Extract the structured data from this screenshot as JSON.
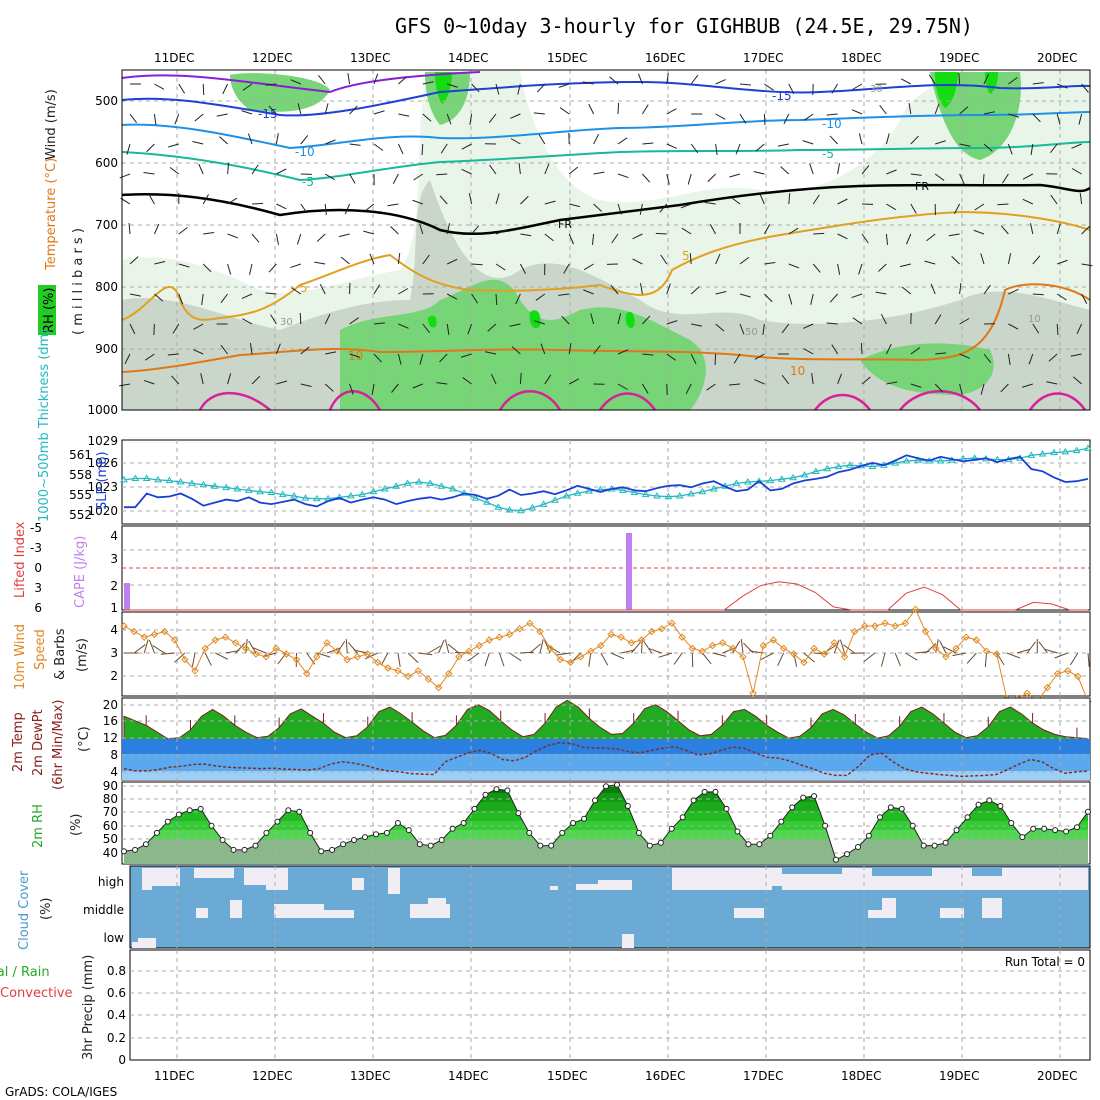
{
  "title": "GFS 0~10day 3-hourly for GIGHBUB (24.5E, 29.75N)",
  "credit": "GrADS: COLA/IGES",
  "days": [
    "11DEC",
    "12DEC",
    "13DEC",
    "14DEC",
    "15DEC",
    "16DEC",
    "17DEC",
    "18DEC",
    "19DEC",
    "20DEC"
  ],
  "colors": {
    "rh_light": "#eaf5ea",
    "rh_mid": "#c9d6c9",
    "rh_green": "#77d477",
    "rh_bright": "#11dd11",
    "temp_neg15": "#1f3fd8",
    "temp_neg10": "#1e90e6",
    "temp_neg5": "#18b89a",
    "temp_fr": "#000000",
    "temp_5": "#e0a020",
    "temp_10": "#e07818",
    "temp_15": "#d8209a",
    "slp": "#1a3fd6",
    "thickness": "#22b8c0",
    "cape": "#c080f0",
    "li": "#e04040",
    "wind": "#e08820",
    "temp_fill": "#22aa22",
    "rh2m": "#22cc22",
    "cloud": "#6aaad4"
  },
  "panels": {
    "upper": {
      "label_wind": "Wind (m/s)",
      "label_temp": "Temperature (°C)",
      "label_rh": "RH (%)",
      "label_mb": "( m i l l i b a r s )",
      "yticks": [
        "500",
        "600",
        "700",
        "800",
        "900",
        "1000"
      ],
      "contour_labels": [
        "-15",
        "-15",
        "-10",
        "-10",
        "-5",
        "-5",
        "FR",
        "FR",
        "5",
        "5",
        "10",
        "10",
        "30",
        "30",
        "50",
        "10"
      ]
    },
    "slp": {
      "label_left": "1000~500mb Thickness (dm)",
      "label_right": "SLP (mb)",
      "ticks_right": [
        "1029",
        "1026",
        "1023",
        "1020"
      ],
      "ticks_left": [
        "561",
        "558",
        "555",
        "552"
      ]
    },
    "cape": {
      "label_left": "Lifted Index",
      "label_right": "CAPE (J/kg)",
      "ticks_li": [
        "-5",
        "-3",
        "0",
        "3",
        "6"
      ],
      "ticks_cape": [
        "4",
        "3",
        "2",
        "1"
      ]
    },
    "wind10": {
      "label1": "10m Wind",
      "label2": "Speed",
      "label3": "& Barbs",
      "unit": "(m/s)",
      "yticks": [
        "4",
        "3",
        "2"
      ]
    },
    "temp2m": {
      "label1": "2m Temp",
      "label2": "2m DewPt",
      "label3": "(6hr Min/Max)",
      "unit": "(°C)",
      "yticks": [
        "20",
        "16",
        "12",
        "8",
        "4"
      ]
    },
    "rh2m": {
      "label": "2m RH",
      "unit": "(%)",
      "yticks": [
        "90",
        "80",
        "70",
        "60",
        "50",
        "40"
      ]
    },
    "cloud": {
      "label": "Cloud Cover",
      "unit": "(%)",
      "levels": [
        "high",
        "middle",
        "low"
      ]
    },
    "precip": {
      "label_total": "Total / Rain",
      "label_conv": "Convective",
      "label_unit": "3hr Precip (mm)",
      "yticks": [
        "0.8",
        "0.6",
        "0.4",
        "0.2",
        "0"
      ],
      "run_total": "Run Total = 0"
    }
  },
  "chart_data": [
    {
      "type": "line",
      "name": "slp",
      "ylabel": "SLP (mb)",
      "ylim": [
        1018,
        1029
      ],
      "values": [
        1020.2,
        1020.2,
        1022,
        1021.5,
        1021.6,
        1022,
        1021.3,
        1020.4,
        1020.8,
        1021.2,
        1021,
        1021.5,
        1020.8,
        1020.6,
        1020.9,
        1021.2,
        1020.6,
        1020.3,
        1021,
        1021.4,
        1020.8,
        1021.2,
        1021.5,
        1021.2,
        1020.6,
        1021,
        1021.3,
        1021.5,
        1021.2,
        1021.5,
        1022,
        1021.8,
        1021.3,
        1021.7,
        1022.5,
        1021.8,
        1022,
        1022.3,
        1021.9,
        1022.4,
        1023,
        1022.6,
        1022.2,
        1022.6,
        1022.8,
        1022.4,
        1022.3,
        1022.7,
        1023,
        1023.1,
        1022.8,
        1023.3,
        1023.6,
        1022.9,
        1022.3,
        1022.5,
        1023.6,
        1022.4,
        1022.6,
        1023.3,
        1023.7,
        1023.9,
        1024.2,
        1024.8,
        1025.1,
        1025.6,
        1026,
        1025.7,
        1026.3,
        1027,
        1026.6,
        1026.3,
        1026.8,
        1026.5,
        1026.2,
        1026.4,
        1026.6,
        1026.1,
        1026.5,
        1026.8,
        1025.2,
        1024.9,
        1024.1,
        1023.5,
        1023.6,
        1023.9
      ]
    },
    {
      "type": "line",
      "name": "thickness",
      "ylabel": "1000~500mb Thickness (dm)",
      "ylim": [
        551,
        563
      ],
      "values": [
        557.3,
        557.5,
        557.5,
        557.3,
        557.2,
        557,
        556.8,
        556.6,
        556.4,
        556.2,
        556,
        555.8,
        555.6,
        555.5,
        555.2,
        555,
        554.7,
        554.6,
        554.6,
        554.8,
        555,
        555.2,
        555.6,
        556,
        556.4,
        556.8,
        557,
        556.8,
        556.4,
        556,
        555.4,
        554.7,
        554.1,
        553.4,
        553,
        552.9,
        553.3,
        553.8,
        554.4,
        555,
        555.4,
        555.7,
        555.9,
        556,
        555.8,
        555.5,
        555.2,
        555,
        554.9,
        555,
        555.3,
        555.6,
        556,
        556.4,
        556.8,
        557,
        557.1,
        557.2,
        557.4,
        557.6,
        558,
        558.5,
        558.9,
        559.2,
        559.4,
        559.3,
        559.2,
        559.4,
        559.7,
        560,
        560.1,
        560,
        560,
        560.1,
        560.3,
        560.4,
        560.3,
        560.2,
        560.2,
        560.4,
        560.8,
        561,
        561.2,
        561.3,
        561.5,
        561.8
      ]
    },
    {
      "type": "bar",
      "name": "cape",
      "ylabel": "CAPE (J/kg)",
      "categories": [
        "10DEC-21Z",
        "15DEC-15Z"
      ],
      "values": [
        2,
        4
      ]
    },
    {
      "type": "line",
      "name": "lifted_index",
      "ylabel": "Lifted Index",
      "values": [
        6,
        6,
        6,
        6,
        6,
        6,
        6,
        6,
        6,
        6,
        6,
        6,
        6,
        6,
        6,
        6,
        6,
        6,
        6,
        6,
        6,
        6,
        6,
        6,
        6,
        6,
        6,
        6,
        6,
        6,
        6,
        6,
        6,
        6,
        4.2,
        2.8,
        2.3,
        2.6,
        3.7,
        5.6,
        6,
        6,
        6,
        3.8,
        3,
        4,
        6,
        6,
        6,
        6,
        5,
        5.2,
        6,
        6
      ]
    },
    {
      "type": "line",
      "name": "wind10_speed",
      "ylabel": "(m/s)",
      "ylim": [
        1.5,
        4.5
      ],
      "values": [
        4,
        3.8,
        3.6,
        3.7,
        3.8,
        3.5,
        2.8,
        2.4,
        3.2,
        3.5,
        3.6,
        3.4,
        3.2,
        3,
        2.9,
        3.2,
        3,
        2.8,
        2.3,
        2.9,
        3.4,
        3.1,
        2.8,
        2.9,
        3,
        2.7,
        2.5,
        2.4,
        2.2,
        2.4,
        2.1,
        1.8,
        2.3,
        2.9,
        3.1,
        3.3,
        3.5,
        3.6,
        3.7,
        3.9,
        4.1,
        3.8,
        3.2,
        2.8,
        2.7,
        2.9,
        3.1,
        3.3,
        3.7,
        3.6,
        3.4,
        3.5,
        3.8,
        3.9,
        4.1,
        3.6,
        3.2,
        3.1,
        3.3,
        3.4,
        3.2,
        2.9,
        1.6,
        3.3,
        3.5,
        3.2,
        3,
        2.7,
        3.2,
        3,
        3.4,
        2.9,
        3.8,
        4,
        4,
        4.1,
        4,
        4.1,
        4.6,
        3.8,
        3.2,
        2.9,
        3.2,
        3.6,
        3.5,
        3.1,
        3,
        1.4,
        1.4,
        1.6,
        1.3,
        1.8,
        2.3,
        2.4,
        2.2,
        1.3
      ]
    },
    {
      "type": "area",
      "name": "temp2m",
      "ylabel": "(°C)",
      "ylim": [
        3,
        21
      ],
      "values": [
        17,
        16,
        15,
        13.5,
        12,
        12.3,
        14,
        17,
        18.5,
        17,
        15,
        13.5,
        12.3,
        12.6,
        14.5,
        17.5,
        18.6,
        17,
        15.5,
        13.5,
        12.3,
        12.7,
        14.7,
        18,
        19,
        17.5,
        15.7,
        13.8,
        12.3,
        12.8,
        15,
        18.5,
        19.5,
        18.2,
        16,
        14,
        12.5,
        13,
        15.5,
        19,
        20.5,
        19,
        16.5,
        14.5,
        13,
        13.2,
        15.5,
        18.7,
        19.5,
        18,
        16,
        14,
        12.7,
        13,
        15,
        18,
        18.5,
        17,
        15,
        13.5,
        12.2,
        12.6,
        14.5,
        17.5,
        18.5,
        17.3,
        15.3,
        13.5,
        12.2,
        12.7,
        14.8,
        18,
        19,
        17.5,
        15.5,
        13.5,
        12.3,
        12.7,
        14.7,
        18,
        19,
        17.5,
        15.5,
        14,
        13,
        12.5,
        12.3,
        12
      ]
    },
    {
      "type": "line",
      "name": "dewpt2m",
      "ylabel": "(°C)",
      "values": [
        5.5,
        5,
        5,
        5.3,
        5.8,
        6,
        6.4,
        6.5,
        6.1,
        5.8,
        5.7,
        5.6,
        5.5,
        5.6,
        5.4,
        5.3,
        5.2,
        5.5,
        6.5,
        7,
        6.7,
        6.2,
        5.5,
        5,
        4.8,
        4.4,
        4.3,
        4.2,
        7,
        8,
        9,
        9.5,
        8.8,
        7.5,
        7.2,
        8,
        9.5,
        10.6,
        11.2,
        11,
        10.2,
        10,
        10,
        9.8,
        9.2,
        9,
        9.5,
        10,
        10.3,
        9.5,
        8.5,
        8.7,
        9.5,
        10.2,
        10,
        9,
        8,
        7.8,
        7.2,
        6.3,
        5.5,
        4.5,
        4,
        4,
        6,
        8.5,
        8.9,
        7,
        5.5,
        4.8,
        4.5,
        4.2,
        4,
        3.8,
        3.9,
        4,
        4.2,
        5.3,
        6.5,
        7.5,
        7,
        5.5,
        4.5,
        4.8,
        5
      ]
    },
    {
      "type": "area",
      "name": "rh2m",
      "ylabel": "(%)",
      "ylim": [
        33,
        91
      ],
      "values": [
        42,
        43,
        47,
        55,
        63,
        68,
        71,
        72,
        60,
        50,
        43,
        43,
        46,
        55,
        63,
        71,
        70,
        55,
        42,
        43,
        47,
        50,
        52,
        54,
        55,
        62,
        57,
        47,
        46,
        50,
        58,
        62,
        72,
        82,
        86,
        85,
        69,
        55,
        46,
        46,
        55,
        62,
        65,
        78,
        88,
        89,
        74,
        55,
        46,
        48,
        58,
        66,
        78,
        84,
        84,
        72,
        56,
        47,
        47,
        53,
        63,
        73,
        80,
        81,
        60,
        36,
        40,
        45,
        53,
        66,
        73,
        72,
        60,
        46,
        46,
        48,
        57,
        66,
        75,
        78,
        74,
        62,
        52,
        58,
        58,
        57,
        56,
        59,
        70
      ]
    },
    {
      "type": "line",
      "name": "precip3hr",
      "ylabel": "3hr Precip (mm)",
      "ylim": [
        0,
        1
      ],
      "values": [
        0
      ],
      "annotations": [
        "Run Total = 0"
      ]
    }
  ]
}
